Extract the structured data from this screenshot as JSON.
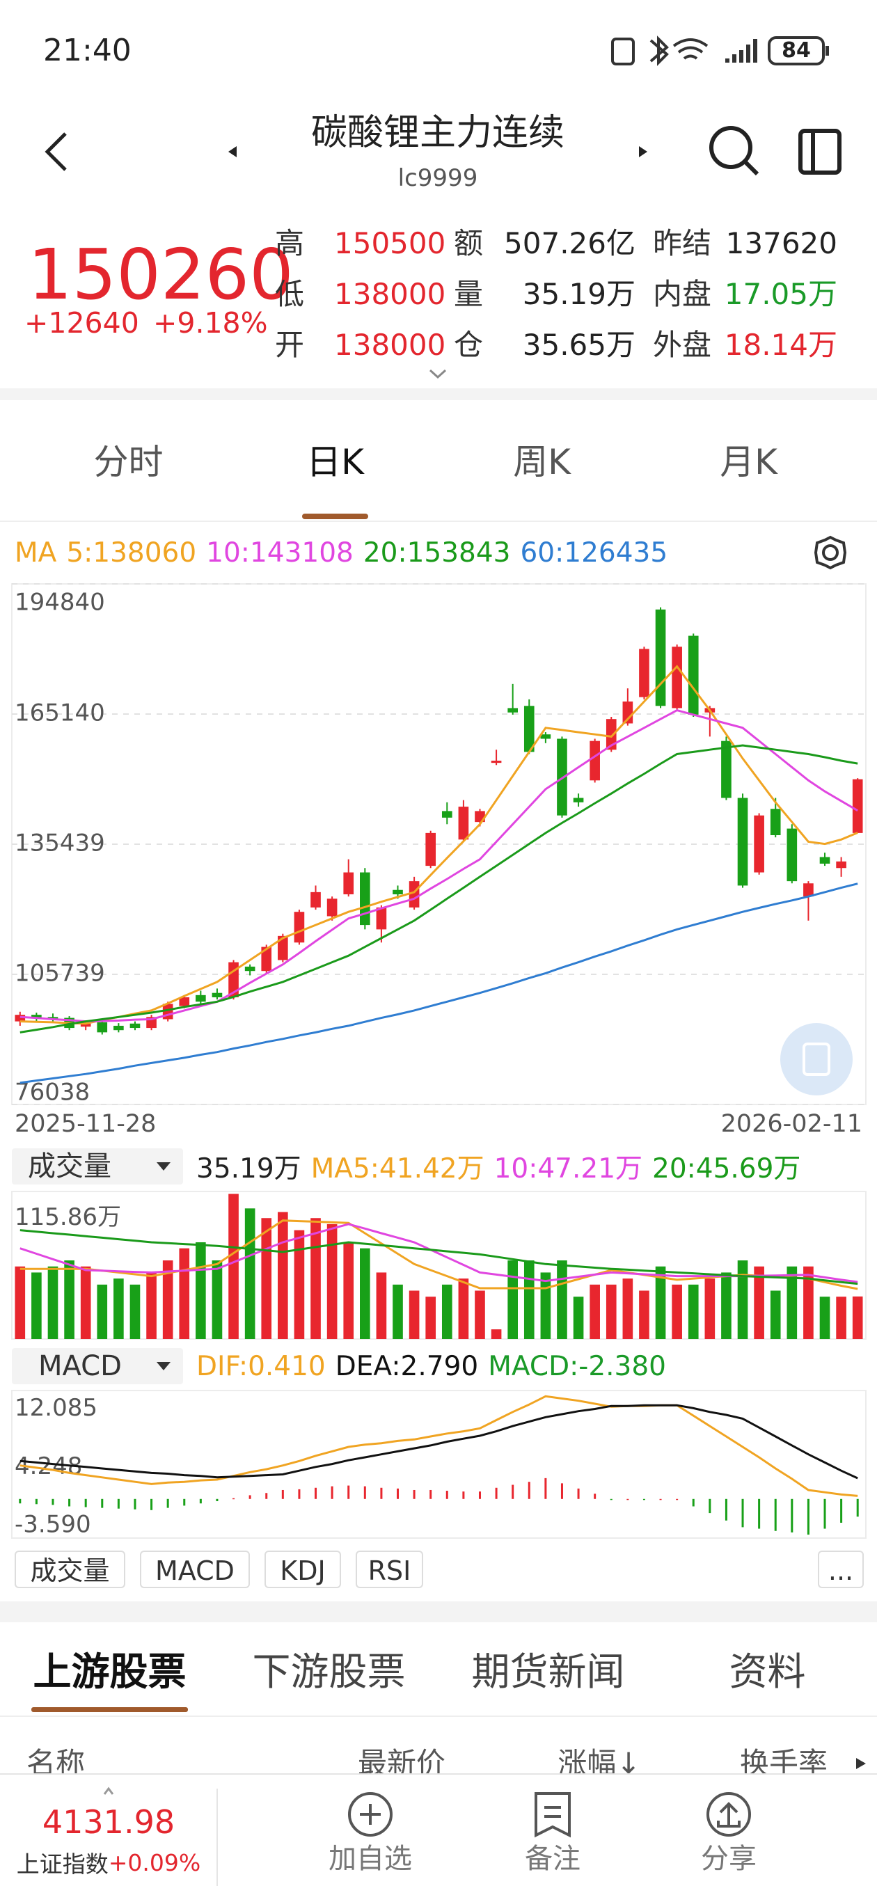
{
  "status_bar": {
    "time": "21:40",
    "battery": "84"
  },
  "header": {
    "title": "碳酸锂主力连续",
    "code": "lc9999"
  },
  "quote": {
    "price": "150260",
    "change": "+12640",
    "change_pct": "+9.18%",
    "stats": [
      [
        {
          "label": "高",
          "value": "150500",
          "color": "#e3262e"
        },
        {
          "label": "额",
          "value": "507.26亿"
        },
        {
          "label": "昨结",
          "value": "137620"
        }
      ],
      [
        {
          "label": "低",
          "value": "138000",
          "color": "#e3262e"
        },
        {
          "label": "量",
          "value": "35.19万"
        },
        {
          "label": "内盘",
          "value": "17.05万",
          "color": "#1a9a28"
        }
      ],
      [
        {
          "label": "开",
          "value": "138000",
          "color": "#e3262e"
        },
        {
          "label": "仓",
          "value": "35.65万"
        },
        {
          "label": "外盘",
          "value": "18.14万",
          "color": "#e3262e"
        }
      ]
    ]
  },
  "period_tabs": {
    "items": [
      "分时",
      "日K",
      "周K",
      "月K"
    ],
    "active": 1
  },
  "chart_data": [
    {
      "type": "candlestick",
      "legend_title": "MA",
      "up_color": "#e8262e",
      "down_color": "#18a018",
      "grid": true,
      "categories": [
        "2025-11-28",
        null,
        null,
        null,
        null,
        null,
        null,
        null,
        null,
        null,
        null,
        null,
        null,
        null,
        null,
        null,
        null,
        null,
        null,
        null,
        null,
        null,
        null,
        null,
        null,
        null,
        null,
        null,
        null,
        null,
        null,
        null,
        null,
        null,
        null,
        null,
        null,
        null,
        null,
        null,
        null,
        null,
        null,
        null,
        null,
        null,
        null,
        null,
        null,
        null,
        null,
        "2026-02-11"
      ],
      "open": [
        95000,
        96500,
        96000,
        95800,
        93800,
        94800,
        94000,
        94500,
        93500,
        95500,
        98500,
        101000,
        101500,
        100500,
        107500,
        106500,
        109000,
        113000,
        121000,
        119000,
        124000,
        129000,
        116000,
        125000,
        121000,
        130500,
        143000,
        136500,
        140500,
        154000,
        166500,
        167000,
        160500,
        159500,
        146000,
        150000,
        157000,
        163000,
        169000,
        189000,
        166500,
        183000,
        165500,
        159000,
        146000,
        129000,
        143500,
        139000,
        123500,
        132500,
        130000,
        138000
      ],
      "high": [
        97200,
        97000,
        96800,
        96200,
        95000,
        95200,
        94600,
        95000,
        96500,
        99500,
        101000,
        102000,
        102500,
        109000,
        108000,
        112500,
        115000,
        120500,
        126000,
        123500,
        132000,
        130000,
        121500,
        126000,
        128000,
        138500,
        145000,
        145500,
        143500,
        157000,
        172000,
        168500,
        161000,
        160000,
        147000,
        159500,
        164500,
        171000,
        180500,
        189500,
        181000,
        183500,
        167000,
        160000,
        147000,
        142500,
        146000,
        140000,
        127000,
        133500,
        132500,
        150500
      ],
      "low": [
        94000,
        95000,
        95000,
        93000,
        93000,
        92000,
        92500,
        93000,
        93000,
        95000,
        98000,
        99000,
        100000,
        100000,
        105500,
        106000,
        108500,
        112500,
        120500,
        118000,
        123500,
        116000,
        113000,
        123000,
        120500,
        130000,
        140000,
        136000,
        139500,
        153500,
        165000,
        156000,
        158500,
        141500,
        144000,
        149500,
        156500,
        162500,
        168500,
        166500,
        166000,
        164500,
        160000,
        145500,
        125500,
        128500,
        137000,
        126500,
        118000,
        130500,
        128000,
        138000
      ],
      "close": [
        96500,
        95800,
        95500,
        93500,
        94500,
        92500,
        93000,
        93500,
        96000,
        99000,
        100500,
        99500,
        100500,
        108500,
        106500,
        112000,
        114500,
        120000,
        124500,
        123000,
        129000,
        117000,
        121000,
        124000,
        127000,
        138000,
        141500,
        144000,
        143000,
        154500,
        165500,
        156500,
        159500,
        142000,
        145000,
        159000,
        164000,
        168000,
        180000,
        167000,
        180500,
        165000,
        166500,
        146000,
        126000,
        142000,
        137500,
        127000,
        126500,
        131000,
        131500,
        150260
      ],
      "ylim": [
        76038,
        194840
      ],
      "yticks": [
        194840,
        165140,
        135439,
        105739,
        76038
      ],
      "series": [
        {
          "name": "5:138060",
          "color": "#f0a422",
          "values": [
            95000,
            94900,
            94800,
            94600,
            94500,
            95300,
            96000,
            96800,
            97500,
            99100,
            100800,
            102400,
            104000,
            106500,
            109000,
            111500,
            114000,
            115500,
            117000,
            118500,
            120000,
            121100,
            122300,
            123400,
            124500,
            128400,
            132300,
            136100,
            140000,
            145500,
            151000,
            156500,
            162000,
            161500,
            161000,
            160500,
            160000,
            164000,
            168000,
            172000,
            176000,
            171000,
            166000,
            160500,
            155000,
            150000,
            145000,
            140500,
            136000,
            135500,
            136500,
            138060
          ]
        },
        {
          "name": "10:143108",
          "color": "#e046e0",
          "values": [
            96000,
            95800,
            95500,
            95300,
            95000,
            95100,
            95200,
            95400,
            95500,
            96500,
            97500,
            98500,
            99500,
            101600,
            103800,
            105900,
            108000,
            110600,
            113300,
            115900,
            118500,
            119600,
            120800,
            121900,
            123000,
            125300,
            127500,
            129800,
            132000,
            136000,
            140000,
            144000,
            148000,
            150500,
            153000,
            155500,
            158000,
            160000,
            162000,
            164000,
            166000,
            165000,
            164000,
            163000,
            162000,
            159000,
            156000,
            153000,
            150000,
            147500,
            145300,
            143108
          ]
        },
        {
          "name": "20:153843",
          "color": "#1a9a1a",
          "values": [
            92500,
            93100,
            93700,
            94400,
            95000,
            95500,
            96000,
            96500,
            97000,
            97600,
            98300,
            98900,
            99500,
            100600,
            101800,
            102900,
            104000,
            105500,
            107000,
            108500,
            110000,
            112000,
            114000,
            116000,
            118000,
            120500,
            123000,
            125500,
            128000,
            130500,
            133000,
            135500,
            138000,
            140300,
            142500,
            144800,
            147000,
            149300,
            151500,
            153800,
            156000,
            156500,
            157000,
            157500,
            158000,
            157500,
            157000,
            156500,
            156000,
            155300,
            154500,
            153843
          ]
        },
        {
          "name": "60:126435",
          "color": "#2f7dd1",
          "values": [
            81000,
            81500,
            82000,
            82500,
            83000,
            83600,
            84200,
            84900,
            85500,
            86100,
            86700,
            87400,
            88000,
            88800,
            89500,
            90300,
            91000,
            91800,
            92500,
            93300,
            94000,
            94900,
            95800,
            96600,
            97500,
            98500,
            99500,
            100500,
            101500,
            102600,
            103700,
            104900,
            106000,
            107300,
            108500,
            109800,
            111000,
            112300,
            113500,
            114800,
            116000,
            117000,
            118000,
            119000,
            120000,
            120900,
            121800,
            122600,
            123500,
            124500,
            125500,
            126435
          ]
        }
      ]
    },
    {
      "type": "bar",
      "selector": "成交量",
      "up_color": "#e8262e",
      "down_color": "#18a018",
      "grid": false,
      "ylim": [
        0,
        122
      ],
      "yticks": [
        {
          "value": 115.86,
          "label": "115.86万"
        }
      ],
      "series": [
        {
          "name": "35.19万",
          "type": "bar",
          "color": "#222222",
          "values": [
            60,
            55,
            60,
            65,
            60,
            45,
            50,
            45,
            55,
            65,
            75,
            80,
            65,
            120,
            108,
            100,
            105,
            90,
            100,
            95,
            80,
            75,
            55,
            45,
            40,
            35,
            45,
            50,
            40,
            8,
            65,
            65,
            55,
            65,
            35,
            45,
            45,
            50,
            40,
            60,
            45,
            45,
            50,
            55,
            65,
            60,
            40,
            60,
            60,
            35,
            35,
            35.19
          ]
        },
        {
          "name": "MA5:41.42万",
          "type": "line",
          "color": "#f0a422",
          "values": [
            58,
            58,
            58,
            58,
            58,
            56.5,
            55,
            53.5,
            52,
            54.5,
            57,
            59.5,
            62,
            71,
            80,
            89,
            98,
            97.5,
            97,
            96.5,
            96,
            87.5,
            79,
            70.5,
            62,
            57,
            52,
            47,
            42,
            42,
            42,
            42,
            42,
            45.8,
            49.5,
            53.3,
            57,
            55,
            53,
            51,
            49,
            50,
            51,
            52,
            53,
            52.3,
            51.5,
            50.8,
            50,
            47,
            44,
            41.42
          ]
        },
        {
          "name": "10:47.21万",
          "type": "line",
          "color": "#e046e0",
          "values": [
            75,
            70.5,
            66,
            61.5,
            57,
            56.5,
            56,
            55.5,
            55,
            55.8,
            56.5,
            57.3,
            58,
            63.5,
            69,
            74.5,
            80,
            83.8,
            87.5,
            91.3,
            95,
            91.3,
            87.5,
            83.8,
            80,
            73.8,
            67.5,
            61.3,
            55,
            53.3,
            51.5,
            49.8,
            48,
            49.8,
            51.5,
            53.3,
            55,
            54.3,
            53.5,
            52.8,
            52,
            52,
            52,
            52,
            52,
            52.3,
            52.5,
            52.8,
            53,
            51,
            49,
            47.21
          ]
        },
        {
          "name": "20:45.69万",
          "type": "line",
          "color": "#1a9a1a",
          "values": [
            90,
            88.8,
            87.5,
            86.3,
            85,
            83.8,
            82.5,
            81.3,
            80,
            79.3,
            78.5,
            77.8,
            77,
            75.8,
            74.5,
            73.3,
            72,
            74,
            76,
            78,
            80,
            78.8,
            77.5,
            76.3,
            75,
            73.8,
            72.5,
            71.3,
            70,
            68,
            66,
            64,
            62,
            61,
            60,
            59,
            58,
            57.3,
            56.5,
            55.8,
            55,
            54.3,
            53.5,
            52.8,
            52,
            51.5,
            51,
            50.5,
            50,
            48.5,
            47,
            45.69
          ]
        }
      ]
    },
    {
      "type": "line",
      "selector": "MACD",
      "up_color": "#e8262e",
      "down_color": "#18a018",
      "grid": false,
      "ylim": [
        -5.26,
        14.58
      ],
      "yticks": [
        12.085,
        4.248,
        {
          "value": -3.59,
          "label": "-3.590"
        }
      ],
      "series": [
        {
          "name": "DIF:0.410",
          "type": "line",
          "color": "#f0a422",
          "values": [
            4.5,
            4.2,
            3.9,
            3.5,
            3.2,
            2.9,
            2.6,
            2.3,
            2.0,
            2.2,
            2.3,
            2.5,
            2.6,
            3.1,
            3.6,
            4.0,
            4.5,
            5.1,
            5.8,
            6.4,
            7.0,
            7.3,
            7.5,
            7.8,
            8.0,
            8.4,
            8.8,
            9.1,
            9.5,
            10.6,
            11.7,
            12.7,
            13.8,
            13.5,
            13.2,
            12.8,
            12.4,
            12.5,
            12.5,
            12.6,
            12.6,
            11.2,
            9.8,
            8.4,
            7.0,
            5.6,
            4.1,
            2.7,
            1.2,
            0.9,
            0.6,
            0.41
          ]
        },
        {
          "name": "DEA:2.790",
          "type": "line",
          "color": "#111111",
          "values": [
            5.1,
            4.9,
            4.7,
            4.5,
            4.3,
            4.1,
            3.9,
            3.7,
            3.5,
            3.4,
            3.2,
            3.1,
            2.9,
            3.0,
            3.1,
            3.2,
            3.3,
            3.8,
            4.3,
            4.7,
            5.2,
            5.6,
            6.0,
            6.4,
            6.8,
            7.2,
            7.7,
            8.1,
            8.5,
            9.1,
            9.8,
            10.4,
            11.0,
            11.4,
            11.8,
            12.1,
            12.5,
            12.5,
            12.6,
            12.6,
            12.6,
            12.2,
            11.7,
            11.3,
            10.8,
            9.6,
            8.4,
            7.2,
            6.0,
            4.9,
            3.8,
            2.79
          ]
        },
        {
          "name": "MACD:-2.380",
          "type": "hist",
          "color": "#1a9a28",
          "values": [
            -0.6,
            -0.7,
            -0.8,
            -1.0,
            -1.1,
            -1.2,
            -1.3,
            -1.4,
            -1.5,
            -1.2,
            -0.9,
            -0.6,
            -0.3,
            0.1,
            0.5,
            0.8,
            1.2,
            1.3,
            1.5,
            1.7,
            1.8,
            1.7,
            1.5,
            1.4,
            1.2,
            1.2,
            1.1,
            1.0,
            1.0,
            1.5,
            1.9,
            2.3,
            2.8,
            2.1,
            1.4,
            0.7,
            -0.1,
            0,
            -0.1,
            0,
            0,
            -1.0,
            -1.9,
            -2.9,
            -3.8,
            -4.0,
            -4.3,
            -4.5,
            -4.8,
            -4.0,
            -3.2,
            -2.38
          ]
        }
      ]
    }
  ],
  "indicator_buttons": [
    "成交量",
    "MACD",
    "KDJ",
    "RSI",
    "..."
  ],
  "info_tabs": {
    "items": [
      "上游股票",
      "下游股票",
      "期货新闻",
      "资料"
    ],
    "active": 0
  },
  "table_header": [
    "名称",
    "最新价",
    "涨幅↓",
    "换手率"
  ],
  "bottom_bar": {
    "index_value": "4131.98",
    "index_name": "上证指数",
    "index_change": "+0.09%",
    "actions": [
      "加自选",
      "备注",
      "分享"
    ]
  }
}
